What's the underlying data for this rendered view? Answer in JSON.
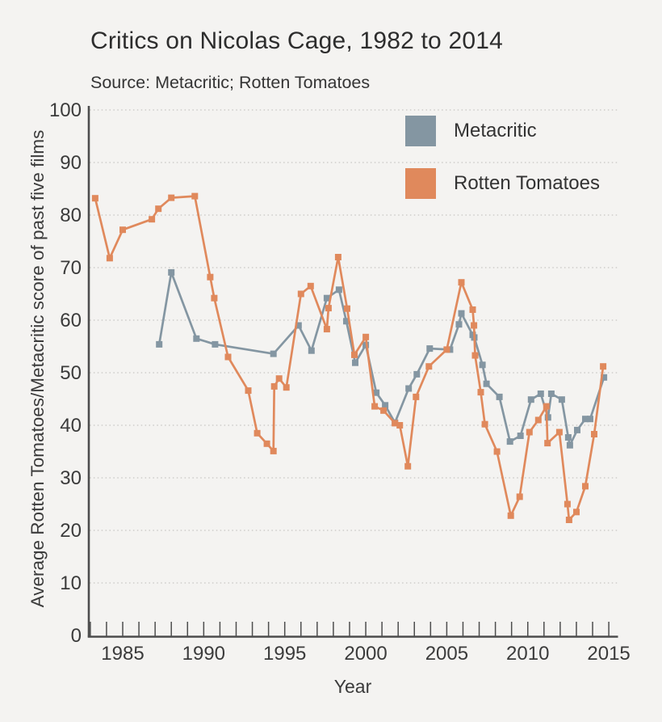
{
  "header": {
    "title": "Critics on Nicolas Cage, 1982 to 2014",
    "subtitle": "Source: Metacritic; Rotten Tomatoes"
  },
  "colors": {
    "background": "#f4f3f1",
    "axis": "#4d4d4d",
    "gridline": "#c6c5c3",
    "metacritic": "#8496a2",
    "rotten_tomatoes": "#e0895c",
    "text": "#3b3b3b"
  },
  "chart_data": {
    "type": "line",
    "title": "Critics on Nicolas Cage, 1982 to 2014",
    "subtitle": "Source: Metacritic; Rotten Tomatoes",
    "xlabel": "Year",
    "ylabel": "Average Rotten Tomatoes/Metacritic score of past five films",
    "xlim": [
      1982.7,
      2015.6
    ],
    "ylim": [
      0,
      100
    ],
    "y_ticks": [
      0,
      10,
      20,
      30,
      40,
      50,
      60,
      70,
      80,
      90,
      100
    ],
    "x_tick_labels": [
      1985,
      1990,
      1995,
      2000,
      2005,
      2010,
      2015
    ],
    "x_minor_ticks": {
      "start": 1983,
      "end": 2015,
      "step": 1
    },
    "grid": "horizontal-dotted",
    "legend": {
      "position": "top-right",
      "entries": [
        {
          "label": "Metacritic",
          "color": "#8496a2"
        },
        {
          "label": "Rotten Tomatoes",
          "color": "#e0895c"
        }
      ]
    },
    "series": [
      {
        "name": "Metacritic",
        "color": "#8496a2",
        "marker": "square",
        "points": [
          [
            1987.25,
            55.4
          ],
          [
            1988.0,
            69.1
          ],
          [
            1989.55,
            56.5
          ],
          [
            1990.7,
            55.4
          ],
          [
            1994.3,
            53.6
          ],
          [
            1995.85,
            59.0
          ],
          [
            1996.65,
            54.2
          ],
          [
            1997.6,
            64.2
          ],
          [
            1998.35,
            65.8
          ],
          [
            1998.8,
            59.8
          ],
          [
            1999.35,
            51.9
          ],
          [
            2000.0,
            55.3
          ],
          [
            2000.65,
            46.2
          ],
          [
            2001.2,
            43.8
          ],
          [
            2001.8,
            40.5
          ],
          [
            2002.65,
            47.0
          ],
          [
            2003.15,
            49.7
          ],
          [
            2003.95,
            54.6
          ],
          [
            2005.2,
            54.4
          ],
          [
            2005.75,
            59.2
          ],
          [
            2005.9,
            61.3
          ],
          [
            2006.6,
            57.2
          ],
          [
            2006.7,
            56.7
          ],
          [
            2007.2,
            51.5
          ],
          [
            2007.45,
            47.9
          ],
          [
            2008.25,
            45.4
          ],
          [
            2008.9,
            36.9
          ],
          [
            2009.55,
            38.0
          ],
          [
            2010.2,
            44.9
          ],
          [
            2010.8,
            46.0
          ],
          [
            2011.25,
            41.5
          ],
          [
            2011.45,
            46.0
          ],
          [
            2012.1,
            44.9
          ],
          [
            2012.5,
            37.7
          ],
          [
            2012.6,
            36.2
          ],
          [
            2013.05,
            39.1
          ],
          [
            2013.55,
            41.2
          ],
          [
            2013.85,
            41.2
          ],
          [
            2014.7,
            49.1
          ]
        ]
      },
      {
        "name": "Rotten Tomatoes",
        "color": "#e0895c",
        "marker": "square",
        "points": [
          [
            1983.3,
            83.2
          ],
          [
            1984.2,
            71.8
          ],
          [
            1985.0,
            77.2
          ],
          [
            1986.8,
            79.2
          ],
          [
            1987.2,
            81.2
          ],
          [
            1988.0,
            83.3
          ],
          [
            1989.45,
            83.6
          ],
          [
            1990.4,
            68.2
          ],
          [
            1990.65,
            64.2
          ],
          [
            1991.5,
            53.0
          ],
          [
            1992.75,
            46.6
          ],
          [
            1993.3,
            38.5
          ],
          [
            1993.9,
            36.5
          ],
          [
            1994.3,
            35.1
          ],
          [
            1994.35,
            47.4
          ],
          [
            1994.65,
            48.9
          ],
          [
            1995.1,
            47.2
          ],
          [
            1996.0,
            65.0
          ],
          [
            1996.6,
            66.5
          ],
          [
            1997.6,
            58.3
          ],
          [
            1997.7,
            62.3
          ],
          [
            1998.3,
            72.0
          ],
          [
            1998.85,
            62.2
          ],
          [
            1999.3,
            53.4
          ],
          [
            2000.0,
            56.8
          ],
          [
            2000.55,
            43.6
          ],
          [
            2001.1,
            42.8
          ],
          [
            2001.8,
            40.4
          ],
          [
            2002.1,
            40.0
          ],
          [
            2002.6,
            32.2
          ],
          [
            2003.1,
            45.4
          ],
          [
            2003.9,
            51.2
          ],
          [
            2005.0,
            54.4
          ],
          [
            2005.9,
            67.2
          ],
          [
            2006.6,
            62.0
          ],
          [
            2006.68,
            59.0
          ],
          [
            2006.75,
            53.3
          ],
          [
            2007.1,
            46.3
          ],
          [
            2007.35,
            40.2
          ],
          [
            2008.1,
            35.0
          ],
          [
            2008.95,
            22.8
          ],
          [
            2009.5,
            26.4
          ],
          [
            2010.1,
            38.7
          ],
          [
            2010.65,
            41.0
          ],
          [
            2011.15,
            43.6
          ],
          [
            2011.22,
            36.6
          ],
          [
            2011.95,
            38.7
          ],
          [
            2012.45,
            25.0
          ],
          [
            2012.55,
            22.0
          ],
          [
            2013.0,
            23.5
          ],
          [
            2013.55,
            28.4
          ],
          [
            2014.1,
            38.3
          ],
          [
            2014.65,
            51.2
          ]
        ]
      }
    ]
  }
}
